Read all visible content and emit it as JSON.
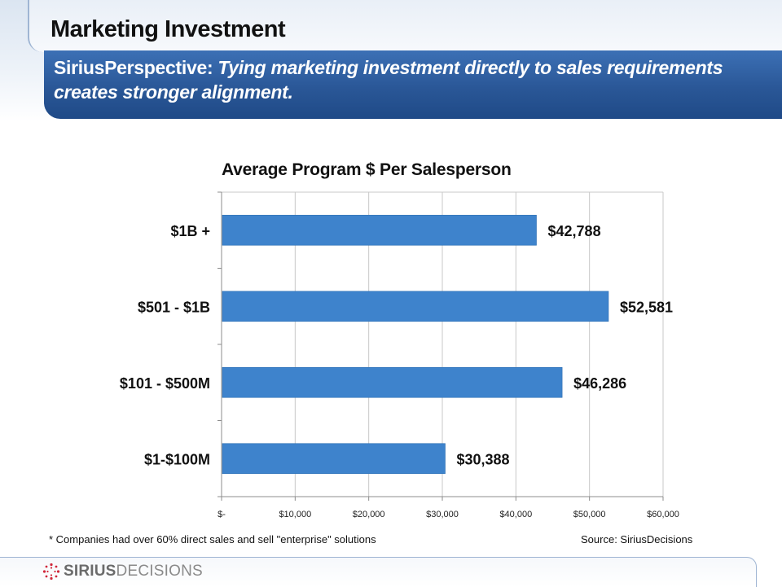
{
  "slide": {
    "title": "Marketing Investment",
    "perspective_label": "SiriusPerspective:",
    "perspective_text": "Tying marketing investment directly to sales requirements creates stronger alignment."
  },
  "chart_data": {
    "type": "bar",
    "orientation": "horizontal",
    "title": "Average Program $ Per Salesperson",
    "categories": [
      "$1B +",
      "$501 - $1B",
      "$101 - $500M",
      "$1-$100M"
    ],
    "values": [
      42788,
      52581,
      46286,
      30388
    ],
    "value_labels": [
      "$42,788",
      "$52,581",
      "$46,286",
      "$30,388"
    ],
    "xlim": [
      0,
      60000
    ],
    "x_ticks": [
      0,
      10000,
      20000,
      30000,
      40000,
      50000,
      60000
    ],
    "x_tick_labels": [
      "$-",
      "$10,000",
      "$20,000",
      "$30,000",
      "$40,000",
      "$50,000",
      "$60,000"
    ],
    "grid": true,
    "legend": "none",
    "bar_color": "#3e83cc"
  },
  "footnote": "*  Companies had over 60% direct sales and sell \"enterprise\" solutions",
  "source": "Source:  SiriusDecisions",
  "logo": {
    "strong": "SIRIUS",
    "light": "DECISIONS"
  }
}
